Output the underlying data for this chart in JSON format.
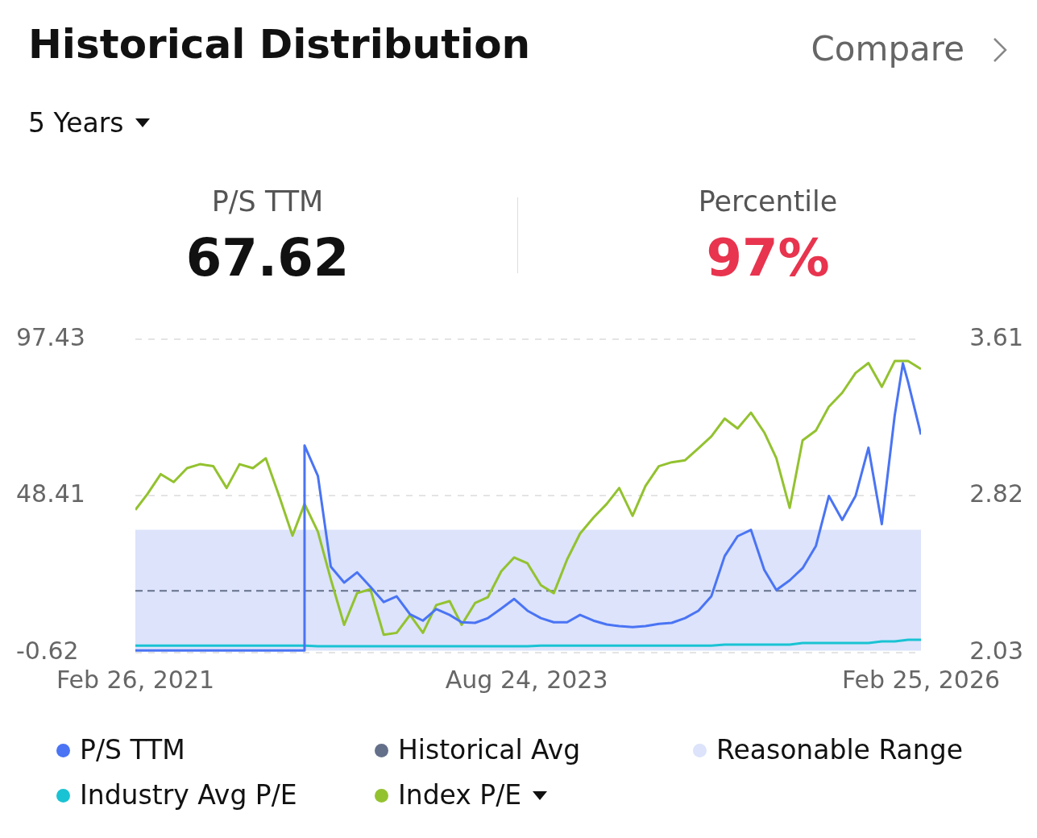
{
  "chart_data": {
    "type": "line",
    "title": "Historical Distribution",
    "annotations": [
      "5 Years",
      "Compare",
      "P/S TTM",
      "67.62",
      "Percentile",
      "97%"
    ],
    "x": [
      "2021-02-26",
      "2021-03-26",
      "2021-04-26",
      "2021-05-26",
      "2021-06-26",
      "2021-07-26",
      "2021-08-26",
      "2021-09-26",
      "2021-10-26",
      "2021-11-26",
      "2021-12-26",
      "2022-01-26",
      "2022-02-26",
      "2022-03-26",
      "2022-04-26",
      "2022-05-26",
      "2022-06-26",
      "2022-07-26",
      "2022-08-26",
      "2022-09-26",
      "2022-10-26",
      "2022-11-26",
      "2022-12-26",
      "2023-01-26",
      "2023-02-26",
      "2023-03-26",
      "2023-04-26",
      "2023-05-26",
      "2023-06-26",
      "2023-07-26",
      "2023-08-26",
      "2023-09-26",
      "2023-10-26",
      "2023-11-26",
      "2023-12-26",
      "2024-01-26",
      "2024-02-26",
      "2024-03-26",
      "2024-04-26",
      "2024-05-26",
      "2024-06-26",
      "2024-07-26",
      "2024-08-26",
      "2024-09-26",
      "2024-10-26",
      "2024-11-26",
      "2024-12-26",
      "2025-01-26",
      "2025-02-26",
      "2025-03-26",
      "2025-04-26",
      "2025-05-26",
      "2025-06-26",
      "2025-07-26",
      "2025-08-26",
      "2025-09-26",
      "2025-10-26",
      "2025-11-26",
      "2025-12-26",
      "2026-01-26",
      "2026-02-25"
    ],
    "series": [
      {
        "name": "P/S TTM",
        "color": "#4a74f4",
        "x": [
          "2021-02-26",
          "2021-03-26",
          "2021-04-26",
          "2021-05-26",
          "2021-06-26",
          "2021-07-26",
          "2021-08-26",
          "2021-09-26",
          "2021-10-26",
          "2021-11-26",
          "2021-12-26",
          "2022-01-26",
          "2022-02-26",
          "2022-03-25",
          "2022-03-26",
          "2022-04-26",
          "2022-05-26",
          "2022-06-26",
          "2022-07-26",
          "2022-08-26",
          "2022-09-26",
          "2022-10-26",
          "2022-11-26",
          "2022-12-26",
          "2023-01-26",
          "2023-02-26",
          "2023-03-26",
          "2023-04-26",
          "2023-05-26",
          "2023-06-26",
          "2023-07-26",
          "2023-08-26",
          "2023-09-26",
          "2023-10-26",
          "2023-11-26",
          "2023-12-26",
          "2024-01-26",
          "2024-02-26",
          "2024-03-26",
          "2024-04-26",
          "2024-05-26",
          "2024-06-26",
          "2024-07-26",
          "2024-08-26",
          "2024-09-26",
          "2024-10-26",
          "2024-11-26",
          "2024-12-26",
          "2025-01-26",
          "2025-02-26",
          "2025-03-26",
          "2025-04-26",
          "2025-05-26",
          "2025-06-26",
          "2025-07-26",
          "2025-08-26",
          "2025-09-26",
          "2025-10-26",
          "2025-11-26",
          "2025-12-26",
          "2026-01-14",
          "2026-01-26",
          "2026-02-25"
        ],
        "values": [
          0.1,
          0.1,
          0.1,
          0.1,
          0.1,
          0.1,
          0.1,
          0.1,
          0.1,
          0.1,
          0.1,
          0.1,
          0.1,
          0.1,
          64.2,
          54.7,
          26.3,
          21.3,
          24.5,
          20.0,
          15.2,
          17.0,
          11.4,
          9.4,
          13.0,
          11.2,
          8.9,
          8.7,
          10.2,
          13.2,
          16.2,
          12.5,
          10.2,
          8.9,
          8.9,
          11.2,
          9.4,
          8.2,
          7.7,
          7.4,
          7.7,
          8.4,
          8.7,
          10.2,
          12.5,
          17.0,
          29.6,
          35.8,
          37.8,
          25.3,
          19.0,
          22.0,
          25.8,
          32.8,
          48.4,
          40.9,
          48.4,
          63.5,
          39.6,
          73.6,
          89.9,
          84.1,
          67.6
        ]
      },
      {
        "name": "Industry Avg P/E",
        "color": "#19c3d3",
        "values": [
          1.6,
          1.6,
          1.6,
          1.6,
          1.6,
          1.6,
          1.6,
          1.6,
          1.6,
          1.6,
          1.6,
          1.6,
          1.6,
          1.6,
          1.4,
          1.4,
          1.4,
          1.4,
          1.4,
          1.4,
          1.4,
          1.4,
          1.4,
          1.4,
          1.4,
          1.4,
          1.4,
          1.4,
          1.4,
          1.4,
          1.4,
          1.6,
          1.6,
          1.6,
          1.6,
          1.6,
          1.6,
          1.6,
          1.6,
          1.6,
          1.6,
          1.6,
          1.6,
          1.6,
          1.6,
          1.9,
          1.9,
          1.9,
          1.9,
          1.9,
          1.9,
          2.4,
          2.4,
          2.4,
          2.4,
          2.4,
          2.4,
          2.9,
          2.9,
          3.4,
          3.4
        ]
      },
      {
        "name": "Index P/E",
        "axis": "y2",
        "color": "#93c22f",
        "values": [
          2.75,
          2.83,
          2.93,
          2.89,
          2.96,
          2.98,
          2.97,
          2.86,
          2.98,
          2.96,
          3.01,
          2.82,
          2.62,
          2.78,
          2.64,
          2.4,
          2.17,
          2.33,
          2.35,
          2.12,
          2.13,
          2.22,
          2.13,
          2.27,
          2.29,
          2.17,
          2.28,
          2.31,
          2.44,
          2.51,
          2.48,
          2.37,
          2.33,
          2.5,
          2.63,
          2.71,
          2.78,
          2.86,
          2.72,
          2.87,
          2.97,
          2.99,
          3.0,
          3.06,
          3.12,
          3.21,
          3.16,
          3.24,
          3.14,
          3.01,
          2.76,
          3.1,
          3.15,
          3.27,
          3.34,
          3.44,
          3.49,
          3.37,
          3.5,
          3.5,
          3.46
        ]
      }
    ],
    "xlim": [
      "2021-02-26",
      "2026-02-25"
    ],
    "xticks": [
      {
        "value": "2021-02-26",
        "label": "Feb 26, 2021"
      },
      {
        "value": "2023-08-24",
        "label": "Aug 24, 2023"
      },
      {
        "value": "2026-02-25",
        "label": "Feb 25, 2026"
      }
    ],
    "ylim": [
      -0.62,
      97.43
    ],
    "yticks": [
      -0.62,
      48.41,
      97.43
    ],
    "y2lim": [
      2.03,
      3.61
    ],
    "y2ticks": [
      2.03,
      2.82,
      3.61
    ],
    "ref_lines": [
      {
        "axis": "y",
        "value": 18.74,
        "label": "Historical Avg",
        "color": "#64708a",
        "line_style": "dashed"
      }
    ],
    "bands": [
      {
        "axis": "y",
        "from": 0,
        "to": 37.85,
        "label": "Reasonable Range",
        "color": "#dce3fb"
      }
    ],
    "grid": "y",
    "legend": "bottom",
    "marker": "none",
    "line_style": "solid"
  }
}
